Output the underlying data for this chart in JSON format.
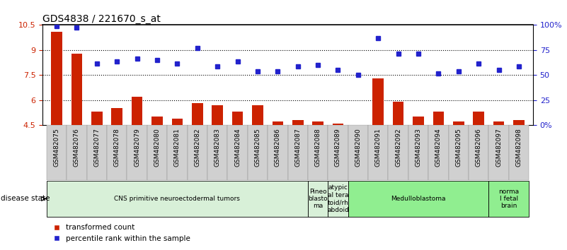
{
  "title": "GDS4838 / 221670_s_at",
  "samples": [
    "GSM482075",
    "GSM482076",
    "GSM482077",
    "GSM482078",
    "GSM482079",
    "GSM482080",
    "GSM482081",
    "GSM482082",
    "GSM482083",
    "GSM482084",
    "GSM482085",
    "GSM482086",
    "GSM482087",
    "GSM482088",
    "GSM482089",
    "GSM482090",
    "GSM482091",
    "GSM482092",
    "GSM482093",
    "GSM482094",
    "GSM482095",
    "GSM482096",
    "GSM482097",
    "GSM482098"
  ],
  "bar_values": [
    10.1,
    8.8,
    5.3,
    5.5,
    6.2,
    5.0,
    4.9,
    5.8,
    5.7,
    5.3,
    5.7,
    4.7,
    4.8,
    4.7,
    4.6,
    4.4,
    7.3,
    5.9,
    5.0,
    5.3,
    4.7,
    5.3,
    4.7,
    4.8
  ],
  "dot_values": [
    10.45,
    10.35,
    8.2,
    8.3,
    8.5,
    8.4,
    8.2,
    9.1,
    8.0,
    8.3,
    7.7,
    7.7,
    8.0,
    8.1,
    7.8,
    7.5,
    9.7,
    8.8,
    8.8,
    7.6,
    7.7,
    8.2,
    7.8,
    8.0
  ],
  "bar_color": "#cc2200",
  "dot_color": "#2222cc",
  "ylim_left": [
    4.5,
    10.5
  ],
  "ylim_right": [
    0,
    100
  ],
  "yticks_left": [
    4.5,
    6.0,
    7.5,
    9.0,
    10.5
  ],
  "ytick_labels_left": [
    "4.5",
    "6",
    "7.5",
    "9",
    "10.5"
  ],
  "yticks_right": [
    0,
    25,
    50,
    75,
    100
  ],
  "ytick_labels_right": [
    "0%",
    "25",
    "50",
    "75",
    "100%"
  ],
  "disease_groups": [
    {
      "label": "CNS primitive neuroectodermal tumors",
      "start": 0,
      "end": 13,
      "color": "#d8f0d8"
    },
    {
      "label": "Pineo\nblasto\nma",
      "start": 13,
      "end": 14,
      "color": "#d8f0d8"
    },
    {
      "label": "atypic\nal tera\ntoid/rh\nabdoid",
      "start": 14,
      "end": 15,
      "color": "#d8f0d8"
    },
    {
      "label": "Medulloblastoma",
      "start": 15,
      "end": 22,
      "color": "#90ee90"
    },
    {
      "label": "norma\nl fetal\nbrain",
      "start": 22,
      "end": 24,
      "color": "#90ee90"
    }
  ],
  "grid_yticks": [
    6.0,
    7.5,
    9.0
  ],
  "bar_width": 0.55,
  "tick_bg_color": "#d0d0d0",
  "top_border_color": "#000000",
  "disease_border_color": "#000000"
}
